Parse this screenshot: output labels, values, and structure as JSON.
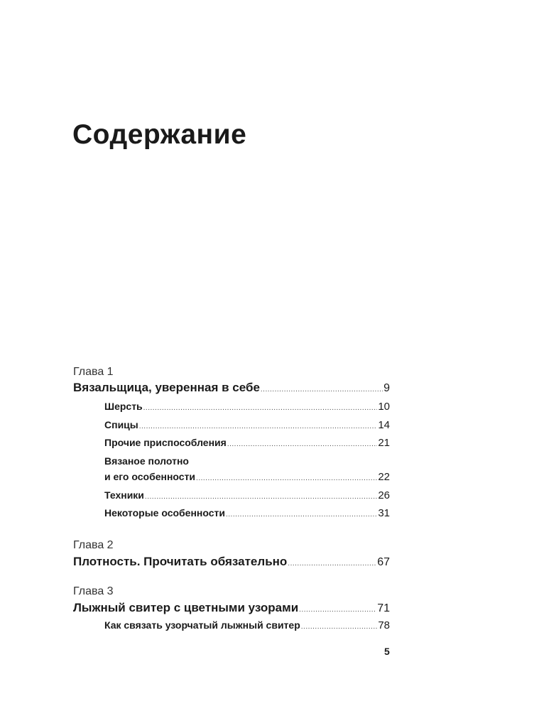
{
  "title": "Содержание",
  "chapters": [
    {
      "label": "Глава 1",
      "title": "Вязальщица, уверенная в себе",
      "page": "9",
      "sections": [
        {
          "title": "Шерсть",
          "page": "10"
        },
        {
          "title": "Спицы",
          "page": "14"
        },
        {
          "title": "Прочие приспособления",
          "page": "21"
        },
        {
          "title_line1": "Вязаное полотно",
          "title": "и его особенности",
          "page": "22"
        },
        {
          "title": "Техники",
          "page": "26"
        },
        {
          "title": "Некоторые особенности",
          "page": "31"
        }
      ]
    },
    {
      "label": "Глава 2",
      "title": "Плотность. Прочитать обязательно",
      "page": "67"
    },
    {
      "label": "Глава 3",
      "title": "Лыжный свитер с цветными узорами",
      "page": "71",
      "sections": [
        {
          "title": "Как связать узорчатый лыжный свитер",
          "page": "78"
        }
      ]
    }
  ],
  "page_number": "5"
}
